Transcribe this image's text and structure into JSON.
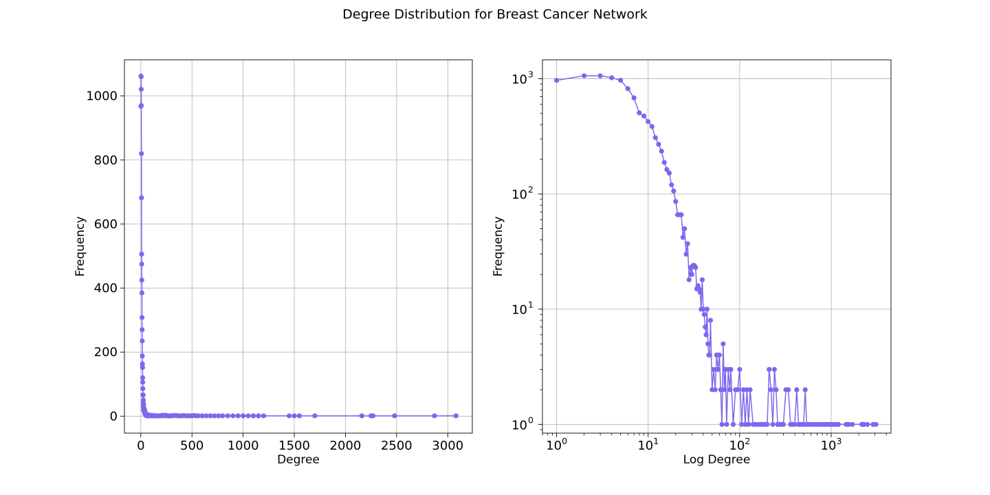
{
  "figure": {
    "title": "Degree Distribution for Breast Cancer Network"
  },
  "colors": {
    "series": "#7b68ee",
    "grid": "#b0b0b0",
    "axes": "#000000"
  },
  "chart_data": [
    {
      "type": "line",
      "markers": true,
      "title": "",
      "xlabel": "Degree",
      "ylabel": "Frequency",
      "xscale": "linear",
      "yscale": "linear",
      "xlim": [
        -160,
        3240
      ],
      "ylim": [
        -53,
        1113
      ],
      "xticks": [
        0,
        500,
        1000,
        1500,
        2000,
        2500,
        3000
      ],
      "xtick_labels": [
        "0",
        "500",
        "1000",
        "1500",
        "2000",
        "2500",
        "3000"
      ],
      "yticks": [
        0,
        200,
        400,
        600,
        800,
        1000
      ],
      "ytick_labels": [
        "0",
        "200",
        "400",
        "600",
        "800",
        "1000"
      ],
      "grid": true,
      "dataset": "degree_distribution"
    },
    {
      "type": "line",
      "markers": true,
      "title": "",
      "xlabel": "Log Degree",
      "ylabel": "Frequency",
      "xscale": "log",
      "yscale": "log",
      "xlim": [
        0.7,
        4500
      ],
      "ylim": [
        0.84,
        1460
      ],
      "xticks": [
        1,
        10,
        100,
        1000
      ],
      "xtick_labels": [
        [
          "10",
          "0"
        ],
        [
          "10",
          "1"
        ],
        [
          "10",
          "2"
        ],
        [
          "10",
          "3"
        ]
      ],
      "yticks": [
        1,
        10,
        100,
        1000
      ],
      "ytick_labels": [
        [
          "10",
          "0"
        ],
        [
          "10",
          "1"
        ],
        [
          "10",
          "2"
        ],
        [
          "10",
          "3"
        ]
      ],
      "grid": true,
      "dataset": "degree_distribution"
    }
  ],
  "degree_distribution": {
    "x": [
      1,
      2,
      3,
      4,
      5,
      6,
      7,
      8,
      9,
      10,
      11,
      12,
      13,
      14,
      15,
      16,
      17,
      18,
      19,
      20,
      21,
      22,
      23,
      24,
      25,
      26,
      27,
      28,
      29,
      30,
      31,
      32,
      33,
      34,
      35,
      36,
      37,
      38,
      39,
      40,
      41,
      42,
      43,
      44,
      45,
      46,
      47,
      48,
      50,
      52,
      54,
      56,
      58,
      60,
      62,
      64,
      66,
      68,
      70,
      72,
      75,
      78,
      80,
      85,
      90,
      95,
      100,
      105,
      110,
      115,
      120,
      125,
      130,
      140,
      150,
      160,
      170,
      180,
      190,
      200,
      210,
      220,
      230,
      240,
      250,
      260,
      270,
      280,
      290,
      300,
      320,
      340,
      360,
      380,
      400,
      420,
      440,
      460,
      480,
      500,
      520,
      540,
      560,
      600,
      640,
      680,
      720,
      760,
      800,
      850,
      900,
      950,
      1000,
      1050,
      1100,
      1150,
      1200,
      1450,
      1500,
      1550,
      1700,
      2160,
      2250,
      2270,
      2480,
      2870,
      3080
    ],
    "y": [
      968,
      1062,
      1060,
      1021,
      970,
      820,
      682,
      506,
      475,
      425,
      385,
      308,
      270,
      235,
      188,
      163,
      152,
      120,
      106,
      86,
      66,
      66,
      66,
      42,
      50,
      30,
      37,
      18,
      23,
      20,
      24,
      24,
      23,
      15,
      16,
      15,
      14,
      10,
      18,
      10,
      9,
      7,
      6,
      10,
      5,
      4,
      4,
      8,
      2,
      3,
      2,
      4,
      3,
      4,
      2,
      1,
      5,
      2,
      3,
      1,
      3,
      2,
      3,
      1,
      2,
      2,
      3,
      1,
      2,
      1,
      2,
      1,
      2,
      1,
      1,
      1,
      1,
      1,
      1,
      1,
      3,
      2,
      1,
      3,
      2,
      1,
      1,
      1,
      1,
      1,
      2,
      2,
      1,
      1,
      1,
      2,
      1,
      1,
      1,
      1,
      2,
      1,
      1,
      1,
      1,
      1,
      1,
      1,
      1,
      1,
      1,
      1,
      1,
      1,
      1,
      1,
      1,
      1,
      1,
      1,
      1,
      1,
      1,
      1,
      1,
      1,
      1
    ]
  }
}
